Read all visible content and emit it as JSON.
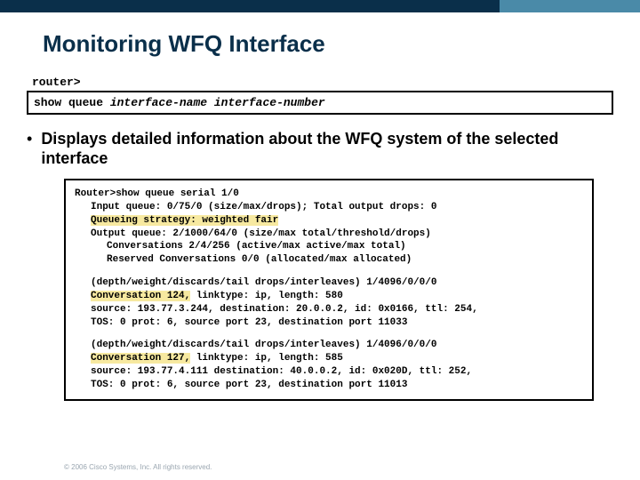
{
  "colors": {
    "top_left": "#0a2f4a",
    "top_right": "#4a8aa8",
    "title": "#0a2f4a",
    "highlight": "#f7e9a0",
    "footer": "#9aa6b0"
  },
  "title": "Monitoring WFQ Interface",
  "prompt": "router>",
  "command": {
    "plain": "show queue ",
    "arg1": "interface-name",
    "sep": " ",
    "arg2": "interface-number"
  },
  "bullet": "Displays detailed information about the WFQ system of the selected interface",
  "output": {
    "block1": {
      "l1": "Router>show queue serial 1/0",
      "l2": "Input queue: 0/75/0 (size/max/drops); Total output drops: 0",
      "l3": "Queueing strategy: weighted fair",
      "l4": "Output queue: 2/1000/64/0 (size/max total/threshold/drops)",
      "l5": "Conversations  2/4/256 (active/max active/max total)",
      "l6": "Reserved Conversations 0/0 (allocated/max allocated)"
    },
    "block2": {
      "l1": "(depth/weight/discards/tail drops/interleaves) 1/4096/0/0/0",
      "l2a": "Conversation 124,",
      "l2b": " linktype: ip, length: 580",
      "l3": "source: 193.77.3.244, destination: 20.0.0.2, id: 0x0166, ttl: 254,",
      "l4": "TOS: 0 prot: 6, source port 23, destination port 11033"
    },
    "block3": {
      "l1": "(depth/weight/discards/tail drops/interleaves) 1/4096/0/0/0",
      "l2a": "Conversation 127,",
      "l2b": " linktype: ip, length: 585",
      "l3": "source: 193.77.4.111 destination: 40.0.0.2, id: 0x020D, ttl: 252,",
      "l4": "TOS: 0 prot: 6, source port 23, destination port 11013"
    }
  },
  "footer": "© 2006 Cisco Systems, Inc. All rights reserved."
}
